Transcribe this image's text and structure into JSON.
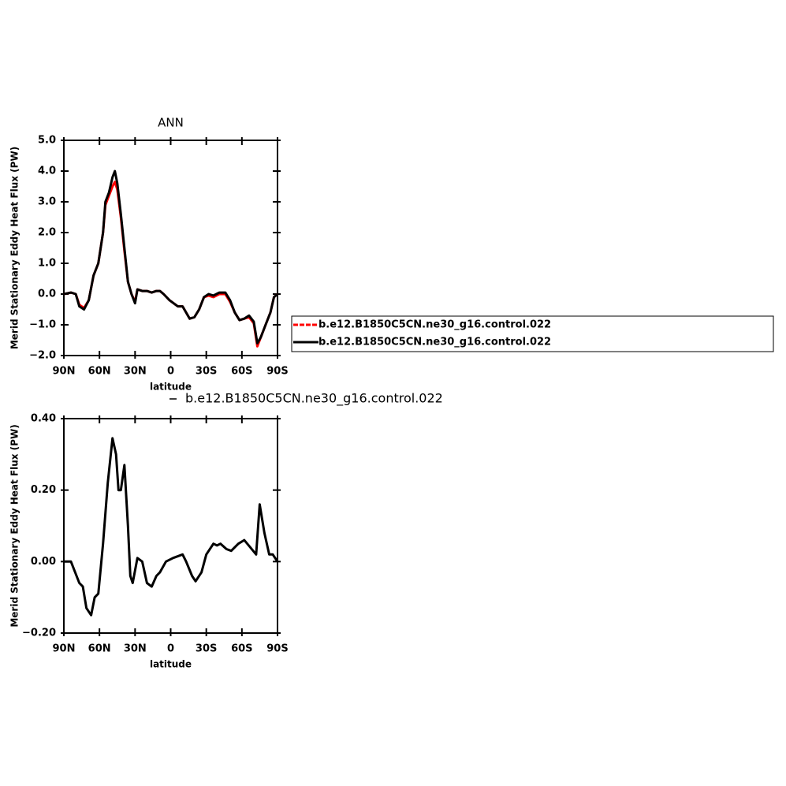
{
  "chart_data": [
    {
      "type": "line",
      "title": "ANN",
      "xlabel": "latitude",
      "ylabel": "Merid Stationary Eddy Heat Flux (PW)",
      "x": [
        90,
        84,
        80,
        77,
        73,
        69,
        65,
        61,
        57,
        55,
        52,
        49,
        47,
        45,
        42,
        39,
        36,
        33,
        30,
        28,
        24,
        20,
        16,
        12,
        9,
        6,
        1,
        -6,
        -10,
        -16,
        -20,
        -24,
        -28,
        -32,
        -36,
        -41,
        -46,
        -50,
        -54,
        -58,
        -62,
        -66,
        -70,
        -73,
        -76,
        -80,
        -84,
        -87,
        -90
      ],
      "series": [
        {
          "name": "b.e12.B1850C5CN.ne30_g16.control.022",
          "color": "#ff0000",
          "values": [
            0,
            0.05,
            0,
            -0.35,
            -0.45,
            -0.2,
            0.6,
            1.0,
            2.0,
            2.9,
            3.2,
            3.5,
            3.65,
            3.4,
            2.5,
            1.4,
            0.4,
            0.0,
            -0.25,
            0.15,
            0.1,
            0.1,
            0.05,
            0.1,
            0.1,
            0.0,
            -0.2,
            -0.4,
            -0.4,
            -0.8,
            -0.75,
            -0.5,
            -0.1,
            -0.05,
            -0.1,
            0.0,
            0.0,
            -0.25,
            -0.6,
            -0.85,
            -0.8,
            -0.75,
            -0.95,
            -1.7,
            -1.4,
            -1.0,
            -0.6,
            -0.1,
            0
          ]
        },
        {
          "name": "b.e12.B1850C5CN.ne30_g16.control.022",
          "color": "#000000",
          "values": [
            0,
            0.05,
            0,
            -0.4,
            -0.5,
            -0.2,
            0.6,
            1.0,
            2.0,
            3.0,
            3.3,
            3.8,
            4.0,
            3.6,
            2.6,
            1.5,
            0.4,
            0.0,
            -0.3,
            0.15,
            0.1,
            0.1,
            0.05,
            0.1,
            0.1,
            0.0,
            -0.2,
            -0.4,
            -0.4,
            -0.8,
            -0.75,
            -0.5,
            -0.1,
            0.0,
            -0.05,
            0.05,
            0.05,
            -0.2,
            -0.6,
            -0.85,
            -0.8,
            -0.7,
            -0.9,
            -1.6,
            -1.4,
            -1.0,
            -0.6,
            -0.1,
            0
          ]
        }
      ],
      "xlim": [
        90,
        -90
      ],
      "xticks": [
        {
          "value": 90,
          "label": "90N"
        },
        {
          "value": 60,
          "label": "60N"
        },
        {
          "value": 30,
          "label": "30N"
        },
        0,
        {
          "value": -30,
          "label": "30S"
        },
        {
          "value": -60,
          "label": "60S"
        },
        {
          "value": -90,
          "label": "90S"
        }
      ],
      "ylim": [
        -2,
        5
      ],
      "yticks": [
        {
          "value": 5,
          "label": "5.0"
        },
        {
          "value": 4,
          "label": "4.0"
        },
        {
          "value": 3,
          "label": "3.0"
        },
        {
          "value": 2,
          "label": "2.0"
        },
        {
          "value": 1,
          "label": "1.0"
        },
        {
          "value": 0,
          "label": "0.0"
        },
        {
          "value": -1,
          "label": "−1.0"
        },
        {
          "value": -2,
          "label": "−2.0"
        }
      ],
      "legend": "right"
    },
    {
      "type": "line",
      "xlabel": "latitude",
      "ylabel": "Merid Stationary Eddy Heat Flux (PW)",
      "x": [
        90,
        84,
        77,
        74,
        71,
        67,
        64,
        61,
        57,
        53,
        49,
        46,
        44,
        42,
        39,
        36,
        34,
        32,
        28,
        24,
        20,
        16,
        12,
        9,
        4,
        -2,
        -10,
        -13,
        -18,
        -21,
        -26,
        -30,
        -36,
        -39,
        -42,
        -47,
        -51,
        -57,
        -62,
        -67,
        -72,
        -75,
        -79,
        -83,
        -86,
        -90
      ],
      "series": [
        {
          "name": "b.e12.B1850C5CN.ne30_g16.control.022",
          "color": "#000000",
          "values": [
            0,
            0,
            -0.06,
            -0.07,
            -0.13,
            -0.15,
            -0.1,
            -0.09,
            0.05,
            0.22,
            0.345,
            0.3,
            0.2,
            0.2,
            0.27,
            0.1,
            -0.04,
            -0.06,
            0.01,
            0,
            -0.06,
            -0.07,
            -0.04,
            -0.03,
            0,
            0.01,
            0.02,
            0,
            -0.04,
            -0.055,
            -0.03,
            0.02,
            0.05,
            0.045,
            0.05,
            0.035,
            0.03,
            0.05,
            0.06,
            0.04,
            0.02,
            0.16,
            0.08,
            0.02,
            0.02,
            0
          ]
        }
      ],
      "xlim": [
        90,
        -90
      ],
      "xticks": [
        {
          "value": 90,
          "label": "90N"
        },
        {
          "value": 60,
          "label": "60N"
        },
        {
          "value": 30,
          "label": "30N"
        },
        0,
        {
          "value": -30,
          "label": "30S"
        },
        {
          "value": -60,
          "label": "60S"
        },
        {
          "value": -90,
          "label": "90S"
        }
      ],
      "ylim": [
        -0.2,
        0.4
      ],
      "yticks": [
        {
          "value": 0.4,
          "label": "0.40"
        },
        {
          "value": 0.2,
          "label": "0.20"
        },
        {
          "value": 0,
          "label": "0.00"
        },
        {
          "value": -0.2,
          "label": "−0.20"
        }
      ],
      "legend": "top"
    }
  ]
}
